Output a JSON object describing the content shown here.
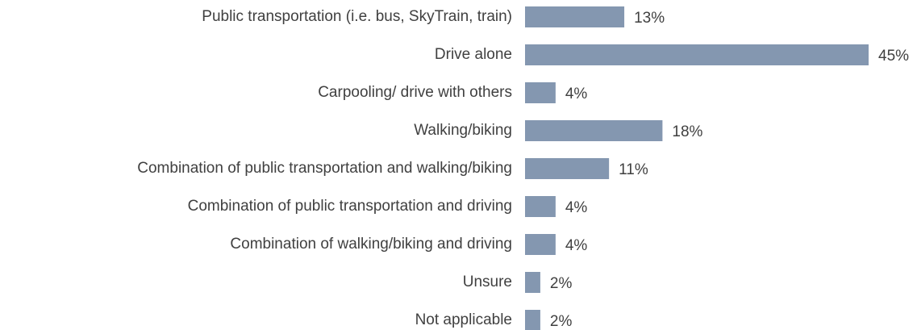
{
  "chart_data": {
    "type": "hbar",
    "categories": [
      "Public transportation (i.e. bus, SkyTrain, train)",
      "Drive alone",
      "Carpooling/ drive with others",
      "Walking/biking",
      "Combination of public transportation and walking/biking",
      "Combination of public transportation and driving",
      "Combination of walking/biking and driving",
      "Unsure",
      "Not applicable"
    ],
    "values": [
      13,
      45,
      4,
      18,
      11,
      4,
      4,
      2,
      2
    ],
    "value_labels": [
      "13%",
      "45%",
      "4%",
      "18%",
      "11%",
      "4%",
      "4%",
      "2%",
      "2%"
    ],
    "color": "#8497b0"
  }
}
